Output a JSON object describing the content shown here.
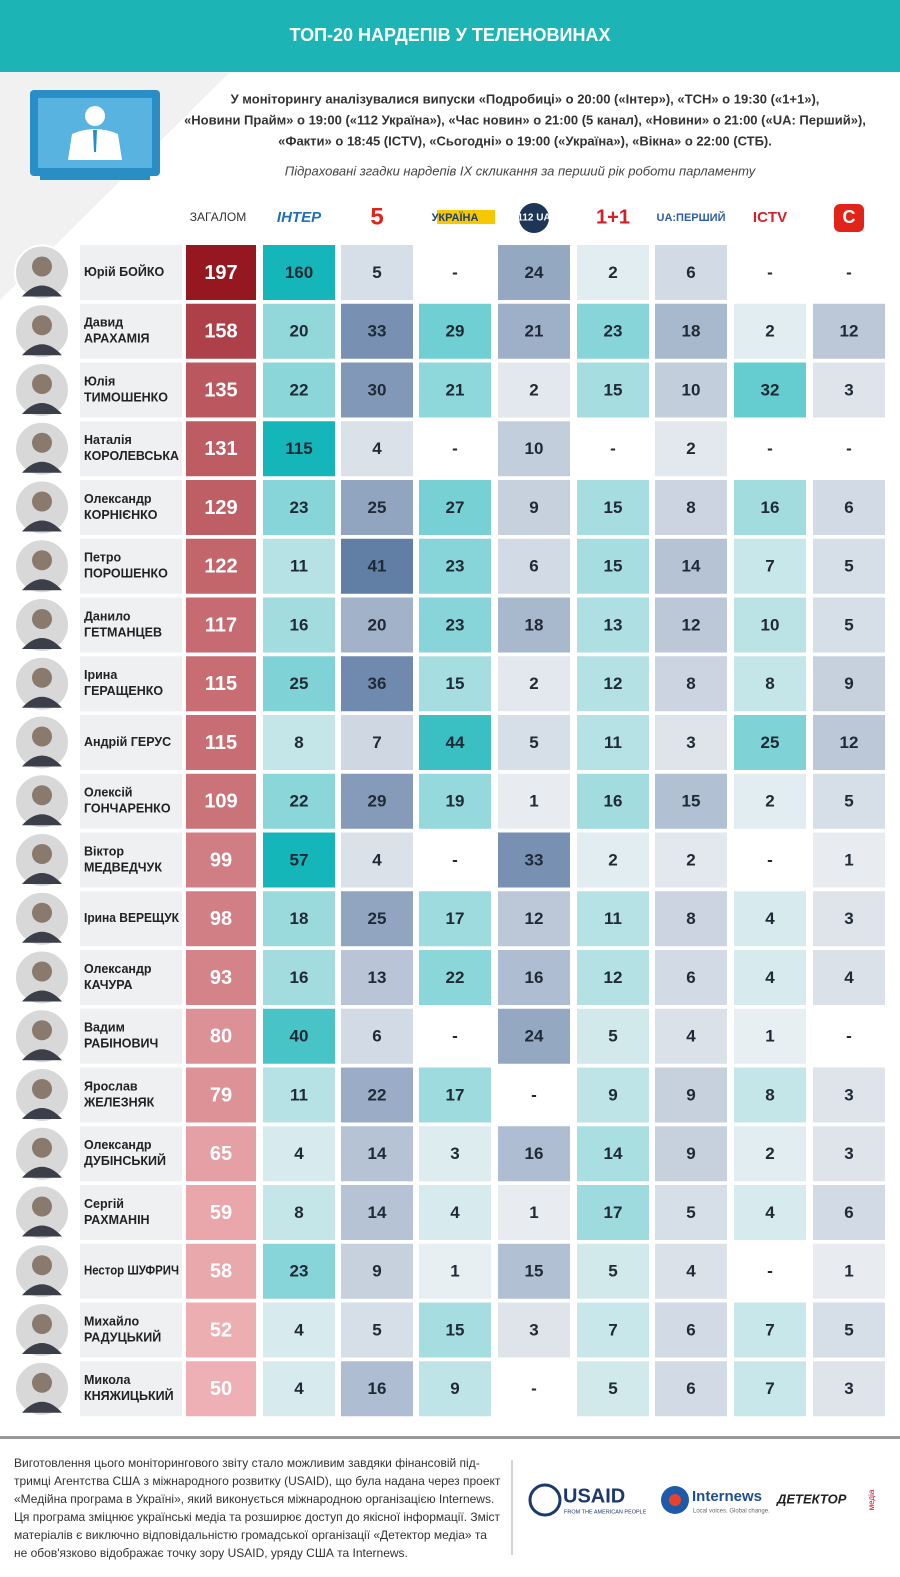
{
  "header": {
    "title": "ТОП-20 НАРДЕПІВ У ТЕЛЕНОВИНАХ",
    "intro": [
      "У моніторингу аналізувалися випуски «Подробиці» о 20:00 («Інтер»), «ТСН» о 19:30 («1+1»),",
      "«Новини Прайм» о 19:00 («112 Україна»), «Час новин» о 21:00 (5 канал), «Новини» о 21:00 («UA: Перший»),",
      "«Факти» о 18:45 (ICTV), «Сьогодні» о 19:00 («Україна»), «Вікна» о 22:00 (СТБ)."
    ],
    "subtitle": "Підраховані згадки нардепів IX скликання за перший рік роботи парламенту"
  },
  "table": {
    "total_header": "ЗАГАЛОМ",
    "channels": [
      "ІНТЕР",
      "5",
      "УКРАЇНА",
      "112 UA",
      "1+1",
      "UA:ПЕРШИЙ",
      "ICTV",
      "С"
    ],
    "rows": [
      {
        "name": [
          "Юрій БОЙКО"
        ],
        "total": 197,
        "values": [
          160,
          5,
          "-",
          24,
          2,
          6,
          "-",
          "-"
        ]
      },
      {
        "name": [
          "Давид",
          "АРАХАМІЯ"
        ],
        "total": 158,
        "values": [
          20,
          33,
          29,
          21,
          23,
          18,
          2,
          12
        ]
      },
      {
        "name": [
          "Юлія",
          "ТИМОШЕНКО"
        ],
        "total": 135,
        "values": [
          22,
          30,
          21,
          2,
          15,
          10,
          32,
          3
        ]
      },
      {
        "name": [
          "Наталія",
          "КОРОЛЕВСЬКА"
        ],
        "total": 131,
        "values": [
          115,
          4,
          "-",
          10,
          "-",
          2,
          "-",
          "-"
        ]
      },
      {
        "name": [
          "Олександр",
          "КОРНІЄНКО"
        ],
        "total": 129,
        "values": [
          23,
          25,
          27,
          9,
          15,
          8,
          16,
          6
        ]
      },
      {
        "name": [
          "Петро",
          "ПОРОШЕНКО"
        ],
        "total": 122,
        "values": [
          11,
          41,
          23,
          6,
          15,
          14,
          7,
          5
        ]
      },
      {
        "name": [
          "Данило",
          "ГЕТМАНЦЕВ"
        ],
        "total": 117,
        "values": [
          16,
          20,
          23,
          18,
          13,
          12,
          10,
          5
        ]
      },
      {
        "name": [
          "Ірина",
          "ГЕРАЩЕНКО"
        ],
        "total": 115,
        "values": [
          25,
          36,
          15,
          2,
          12,
          8,
          8,
          9
        ]
      },
      {
        "name": [
          "Андрій ГЕРУС"
        ],
        "total": 115,
        "values": [
          8,
          7,
          44,
          5,
          11,
          3,
          25,
          12
        ]
      },
      {
        "name": [
          "Олексій",
          "ГОНЧАРЕНКО"
        ],
        "total": 109,
        "values": [
          22,
          29,
          19,
          1,
          16,
          15,
          2,
          5
        ]
      },
      {
        "name": [
          "Віктор",
          "МЕДВЕДЧУК"
        ],
        "total": 99,
        "values": [
          57,
          4,
          "-",
          33,
          2,
          2,
          "-",
          1
        ]
      },
      {
        "name": [
          "Ірина ВЕРЕЩУК"
        ],
        "total": 98,
        "values": [
          18,
          25,
          17,
          12,
          11,
          8,
          4,
          3
        ]
      },
      {
        "name": [
          "Олександр",
          "КАЧУРА"
        ],
        "total": 93,
        "values": [
          16,
          13,
          22,
          16,
          12,
          6,
          4,
          4
        ]
      },
      {
        "name": [
          "Вадим",
          "РАБІНОВИЧ"
        ],
        "total": 80,
        "values": [
          40,
          6,
          "-",
          24,
          5,
          4,
          1,
          "-"
        ]
      },
      {
        "name": [
          "Ярослав",
          "ЖЕЛЕЗНЯК"
        ],
        "total": 79,
        "values": [
          11,
          22,
          17,
          "-",
          9,
          9,
          8,
          3
        ]
      },
      {
        "name": [
          "Олександр",
          "ДУБІНСЬКИЙ"
        ],
        "total": 65,
        "values": [
          4,
          14,
          3,
          16,
          14,
          9,
          2,
          3
        ]
      },
      {
        "name": [
          "Сергій",
          "РАХМАНІН"
        ],
        "total": 59,
        "values": [
          8,
          14,
          4,
          1,
          17,
          5,
          4,
          6
        ]
      },
      {
        "name": [
          "Нестор ШУФРИЧ"
        ],
        "total": 58,
        "values": [
          23,
          9,
          1,
          15,
          5,
          4,
          "-",
          1
        ]
      },
      {
        "name": [
          "Михайло",
          "РАДУЦЬКИЙ"
        ],
        "total": 52,
        "values": [
          4,
          5,
          15,
          3,
          7,
          6,
          7,
          5
        ]
      },
      {
        "name": [
          "Микола",
          "КНЯЖИЦЬКИЙ"
        ],
        "total": 50,
        "values": [
          4,
          16,
          9,
          "-",
          5,
          6,
          7,
          3
        ]
      }
    ]
  },
  "footer": {
    "text": [
      "Виготовлення цього моніторингового звіту стало можливим завдяки фінансовій під-",
      "тримці Агентства США з міжнародного розвитку (USAID), що була надана через проект",
      "«Медійна програма в Україні», який виконується міжнародною організацією Internews.",
      "Ця програма зміцнює українські медіа та розширює доступ до якісної інформації.  Зміст",
      "матеріалів є виключно відповідальністю громадської організації «Детектор медіа» та",
      "не обов'язково відображає точку зору USAID, уряду США та Internews."
    ],
    "logos": [
      "USAID",
      "FROM THE AMERICAN PEOPLE",
      "Internews",
      "Local voices. Global change.",
      "ДЕТЕКТОР",
      "медіа"
    ]
  }
}
